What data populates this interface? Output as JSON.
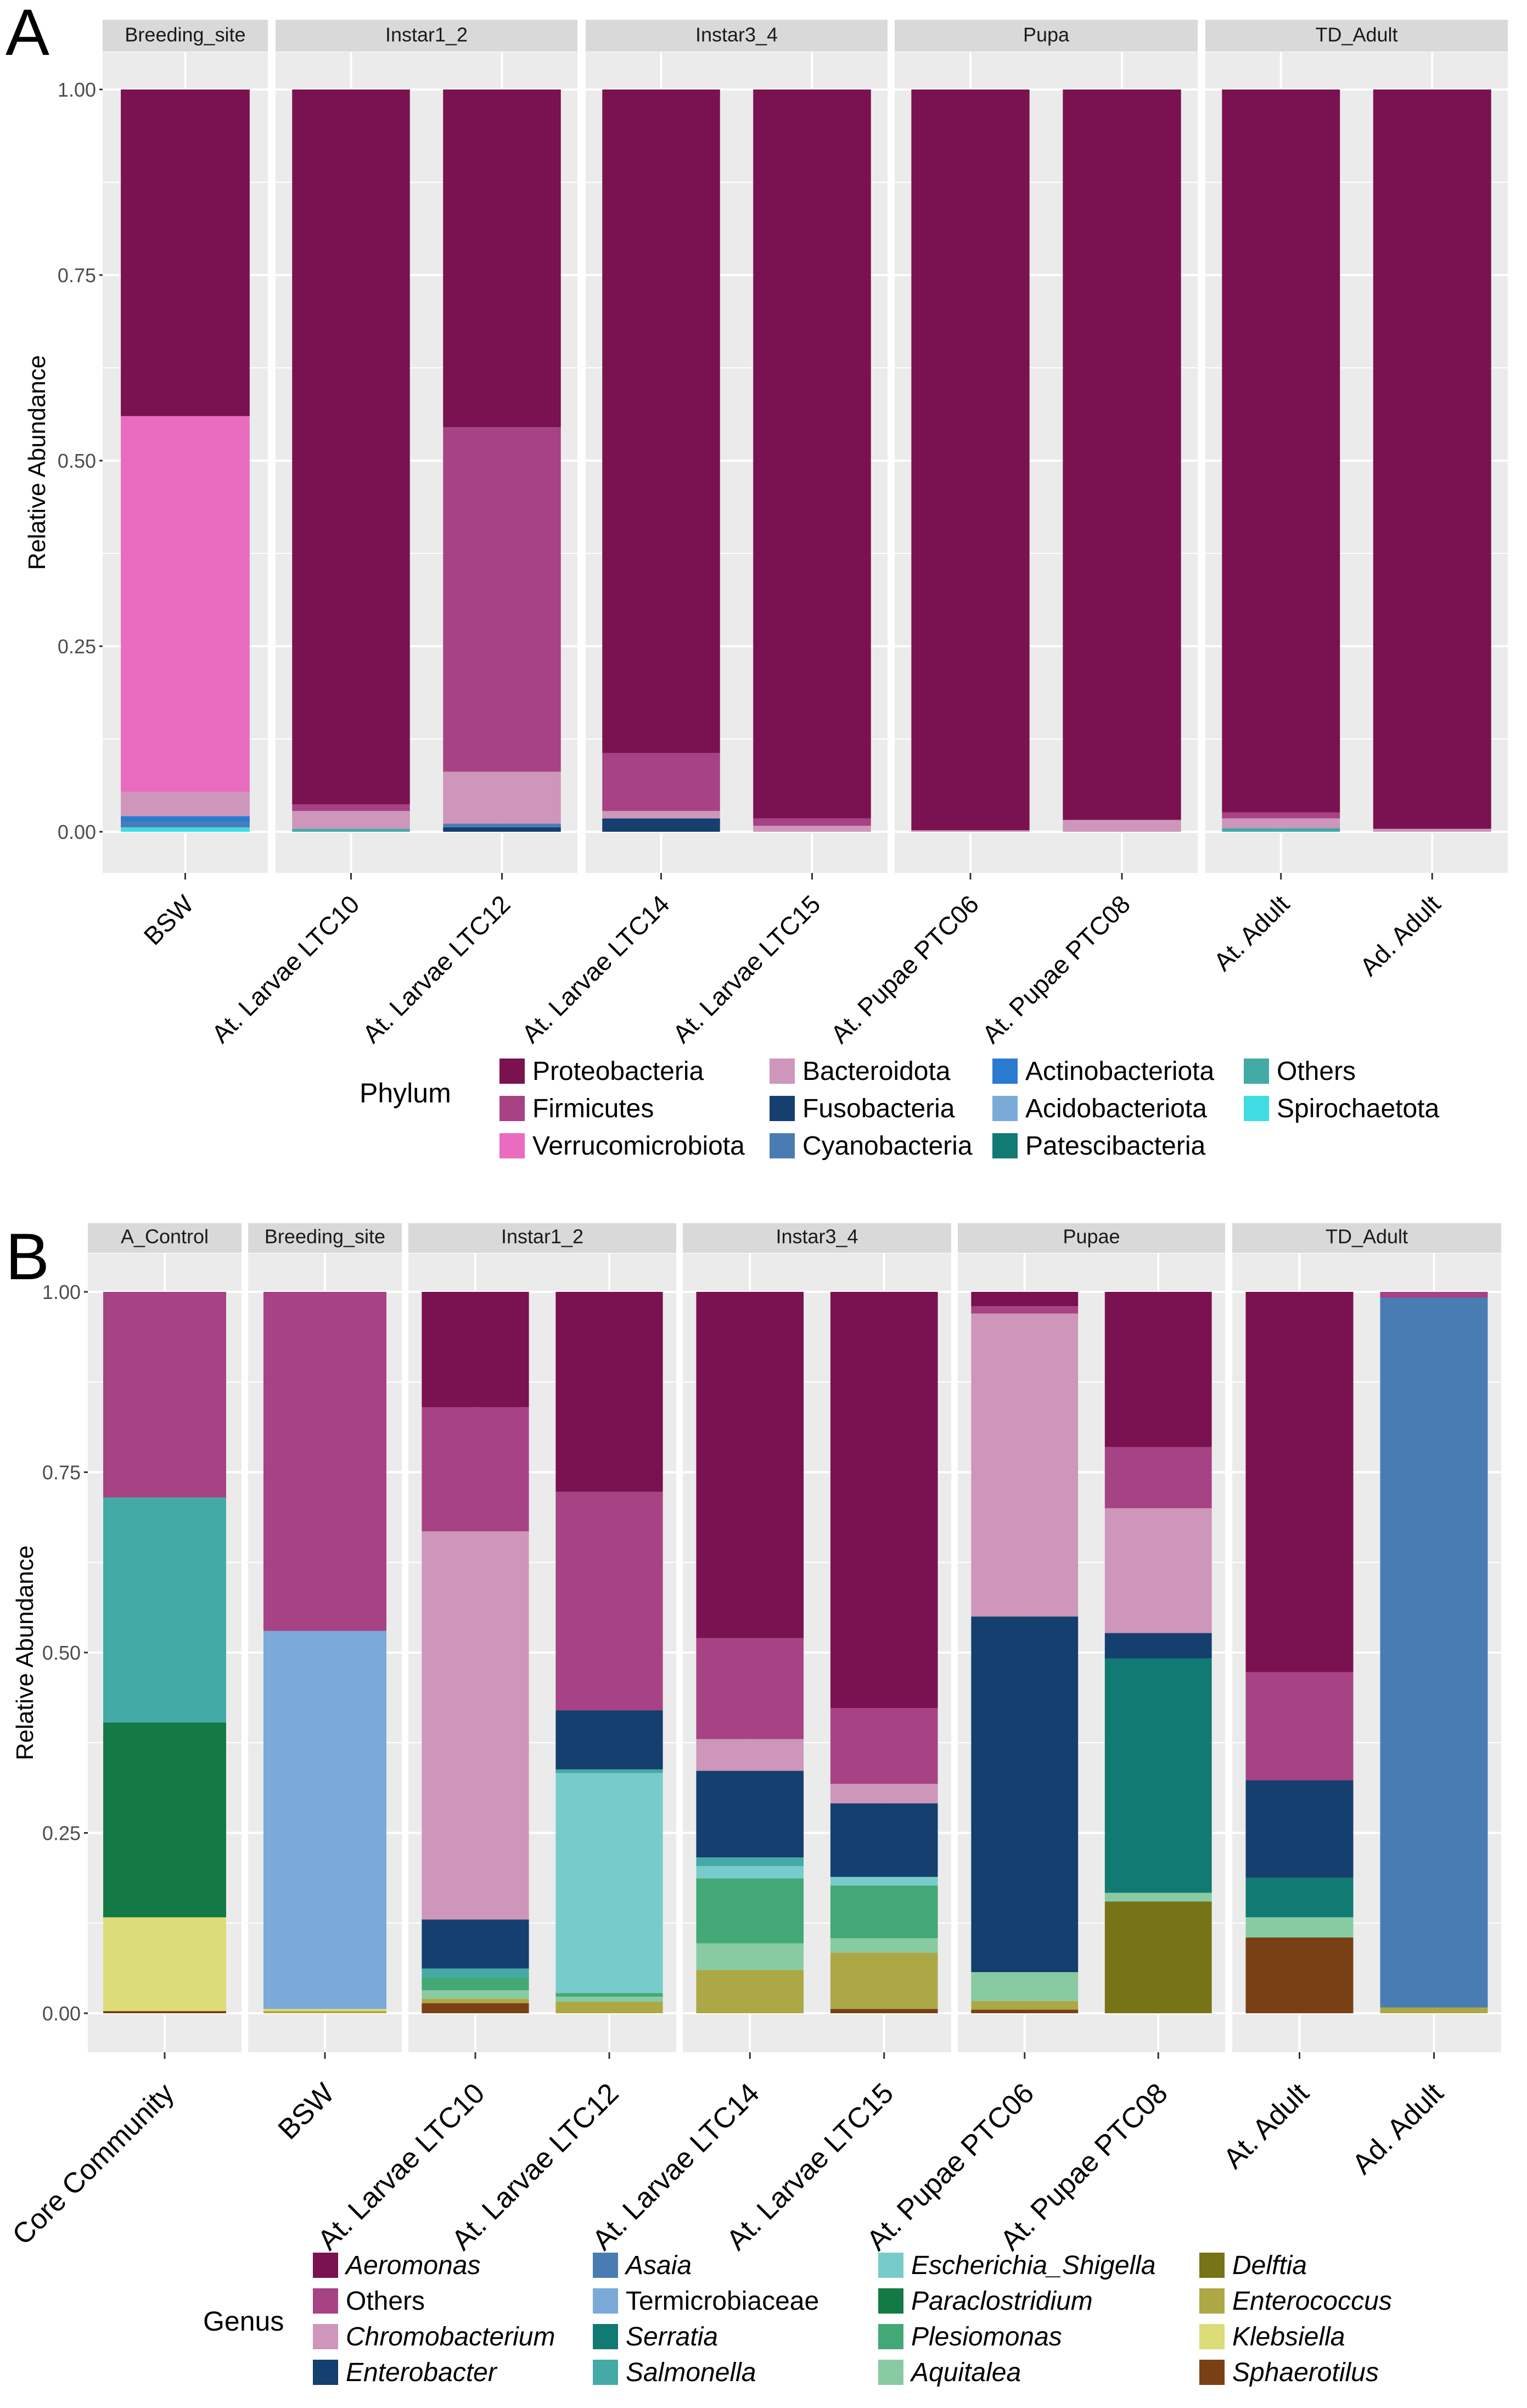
{
  "figure": {
    "panel_a_label": "A",
    "panel_b_label": "B"
  },
  "colors": {
    "panelbg": "#ebebeb",
    "stripbg": "#d9d9d9",
    "grid": "#ffffff",
    "text": "#4d4d4d",
    "dark": "#000000"
  },
  "chart_data": [
    {
      "panel": "A",
      "type": "bar",
      "stacked": true,
      "ylabel": "Relative Abundance",
      "xlabel": "",
      "ylim": [
        0,
        1
      ],
      "yticks": [
        "0.00",
        "0.25",
        "0.50",
        "0.75",
        "1.00"
      ],
      "facets": [
        {
          "label": "Breeding_site",
          "samples": [
            "BSW"
          ]
        },
        {
          "label": "Instar1_2",
          "samples": [
            "At. Larvae LTC10",
            "At. Larvae LTC12"
          ]
        },
        {
          "label": "Instar3_4",
          "samples": [
            "At. Larvae LTC14",
            "At. Larvae LTC15"
          ]
        },
        {
          "label": "Pupa",
          "samples": [
            "At. Pupae PTC06",
            "At. Pupae PTC08"
          ]
        },
        {
          "label": "TD_Adult",
          "samples": [
            "At. Adult",
            "Ad. Adult"
          ]
        }
      ],
      "legend": {
        "title": "Phylum",
        "position": "bottom",
        "columns": [
          [
            "Proteobacteria",
            "Firmicutes",
            "Verrucomicrobiota"
          ],
          [
            "Bacteroidota",
            "Fusobacteria",
            "Cyanobacteria"
          ],
          [
            "Actinobacteriota",
            "Acidobacteriota",
            "Patescibacteria"
          ],
          [
            "Others",
            "Spirochaetota"
          ]
        ]
      },
      "series": [
        {
          "name": "Proteobacteria",
          "color": "#7a1150"
        },
        {
          "name": "Firmicutes",
          "color": "#a74285"
        },
        {
          "name": "Verrucomicrobiota",
          "color": "#e96cc1"
        },
        {
          "name": "Bacteroidota",
          "color": "#cd96ba"
        },
        {
          "name": "Fusobacteria",
          "color": "#143f6e"
        },
        {
          "name": "Cyanobacteria",
          "color": "#4a7cb4"
        },
        {
          "name": "Actinobacteriota",
          "color": "#2a7ad0"
        },
        {
          "name": "Acidobacteriota",
          "color": "#7baad9"
        },
        {
          "name": "Patescibacteria",
          "color": "#117a72"
        },
        {
          "name": "Others",
          "color": "#44aaa6"
        },
        {
          "name": "Spirochaetota",
          "color": "#3fdde3"
        }
      ],
      "stacks": {
        "BSW": [
          {
            "name": "Spirochaetota",
            "value": 0.006
          },
          {
            "name": "Cyanobacteria",
            "value": 0.007
          },
          {
            "name": "Actinobacteriota",
            "value": 0.008
          },
          {
            "name": "Bacteroidota",
            "value": 0.033
          },
          {
            "name": "Verrucomicrobiota",
            "value": 0.506
          },
          {
            "name": "Proteobacteria",
            "value": 0.44
          }
        ],
        "At. Larvae LTC10": [
          {
            "name": "Others",
            "value": 0.004
          },
          {
            "name": "Bacteroidota",
            "value": 0.024
          },
          {
            "name": "Firmicutes",
            "value": 0.009
          },
          {
            "name": "Proteobacteria",
            "value": 0.963
          }
        ],
        "At. Larvae LTC12": [
          {
            "name": "Fusobacteria",
            "value": 0.006
          },
          {
            "name": "Cyanobacteria",
            "value": 0.005
          },
          {
            "name": "Bacteroidota",
            "value": 0.07
          },
          {
            "name": "Firmicutes",
            "value": 0.464
          },
          {
            "name": "Proteobacteria",
            "value": 0.455
          }
        ],
        "At. Larvae LTC14": [
          {
            "name": "Fusobacteria",
            "value": 0.018
          },
          {
            "name": "Bacteroidota",
            "value": 0.01
          },
          {
            "name": "Firmicutes",
            "value": 0.078
          },
          {
            "name": "Proteobacteria",
            "value": 0.894
          }
        ],
        "At. Larvae LTC15": [
          {
            "name": "Bacteroidota",
            "value": 0.008
          },
          {
            "name": "Firmicutes",
            "value": 0.01
          },
          {
            "name": "Proteobacteria",
            "value": 0.982
          }
        ],
        "At. Pupae PTC06": [
          {
            "name": "Bacteroidota",
            "value": 0.002
          },
          {
            "name": "Proteobacteria",
            "value": 0.998
          }
        ],
        "At. Pupae PTC08": [
          {
            "name": "Bacteroidota",
            "value": 0.016
          },
          {
            "name": "Proteobacteria",
            "value": 0.984
          }
        ],
        "At. Adult": [
          {
            "name": "Others",
            "value": 0.005
          },
          {
            "name": "Bacteroidota",
            "value": 0.013
          },
          {
            "name": "Firmicutes",
            "value": 0.008
          },
          {
            "name": "Proteobacteria",
            "value": 0.974
          }
        ],
        "Ad. Adult": [
          {
            "name": "Bacteroidota",
            "value": 0.004
          },
          {
            "name": "Proteobacteria",
            "value": 0.996
          }
        ]
      }
    },
    {
      "panel": "B",
      "type": "bar",
      "stacked": true,
      "ylabel": "Relative Abundance",
      "xlabel": "",
      "ylim": [
        0,
        1
      ],
      "yticks": [
        "0.00",
        "0.25",
        "0.50",
        "0.75",
        "1.00"
      ],
      "facets": [
        {
          "label": "A_Control",
          "samples": [
            "Core Community"
          ]
        },
        {
          "label": "Breeding_site",
          "samples": [
            "BSW"
          ]
        },
        {
          "label": "Instar1_2",
          "samples": [
            "At. Larvae LTC10",
            "At. Larvae LTC12"
          ]
        },
        {
          "label": "Instar3_4",
          "samples": [
            "At. Larvae LTC14",
            "At. Larvae LTC15"
          ]
        },
        {
          "label": "Pupae",
          "samples": [
            "At. Pupae PTC06",
            "At. Pupae PTC08"
          ]
        },
        {
          "label": "TD_Adult",
          "samples": [
            "At. Adult",
            "Ad. Adult"
          ]
        }
      ],
      "legend": {
        "title": "Genus",
        "position": "bottom",
        "columns": [
          [
            "Aeromonas",
            "Others",
            "Chromobacterium",
            "Enterobacter"
          ],
          [
            "Asaia",
            "Termicrobiaceae",
            "Serratia",
            "Salmonella"
          ],
          [
            "Escherichia_Shigella",
            "Paraclostridium",
            "Plesiomonas",
            "Aquitalea"
          ],
          [
            "Delftia",
            "Enterococcus",
            "Klebsiella",
            "Sphaerotilus"
          ]
        ],
        "non_italic": [
          "Others",
          "Termicrobiaceae"
        ]
      },
      "series": [
        {
          "name": "Aeromonas",
          "color": "#7a1150"
        },
        {
          "name": "Others",
          "color": "#a74285"
        },
        {
          "name": "Chromobacterium",
          "color": "#cd96ba"
        },
        {
          "name": "Enterobacter",
          "color": "#143f6e"
        },
        {
          "name": "Asaia",
          "color": "#4a7cb4"
        },
        {
          "name": "Termicrobiaceae",
          "color": "#7baad9"
        },
        {
          "name": "Serratia",
          "color": "#117a72"
        },
        {
          "name": "Salmonella",
          "color": "#44aaa6"
        },
        {
          "name": "Escherichia_Shigella",
          "color": "#77cccb"
        },
        {
          "name": "Paraclostridium",
          "color": "#137a45"
        },
        {
          "name": "Plesiomonas",
          "color": "#42a876"
        },
        {
          "name": "Aquitalea",
          "color": "#88cba2"
        },
        {
          "name": "Delftia",
          "color": "#767417"
        },
        {
          "name": "Enterococcus",
          "color": "#aca846"
        },
        {
          "name": "Klebsiella",
          "color": "#dcdc78"
        },
        {
          "name": "Sphaerotilus",
          "color": "#7a4015"
        }
      ],
      "stacks": {
        "Core Community": [
          {
            "name": "Sphaerotilus",
            "value": 0.003
          },
          {
            "name": "Klebsiella",
            "value": 0.13
          },
          {
            "name": "Paraclostridium",
            "value": 0.27
          },
          {
            "name": "Salmonella",
            "value": 0.312
          },
          {
            "name": "Others",
            "value": 0.285
          }
        ],
        "BSW": [
          {
            "name": "Enterococcus",
            "value": 0.003
          },
          {
            "name": "Klebsiella",
            "value": 0.003
          },
          {
            "name": "Termicrobiaceae",
            "value": 0.524
          },
          {
            "name": "Others",
            "value": 0.47
          }
        ],
        "At. Larvae LTC10": [
          {
            "name": "Sphaerotilus",
            "value": 0.014
          },
          {
            "name": "Enterococcus",
            "value": 0.006
          },
          {
            "name": "Aquitalea",
            "value": 0.012
          },
          {
            "name": "Plesiomonas",
            "value": 0.018
          },
          {
            "name": "Salmonella",
            "value": 0.012
          },
          {
            "name": "Enterobacter",
            "value": 0.068
          },
          {
            "name": "Chromobacterium",
            "value": 0.538
          },
          {
            "name": "Others",
            "value": 0.172
          },
          {
            "name": "Aeromonas",
            "value": 0.16
          }
        ],
        "At. Larvae LTC12": [
          {
            "name": "Enterococcus",
            "value": 0.016
          },
          {
            "name": "Aquitalea",
            "value": 0.007
          },
          {
            "name": "Plesiomonas",
            "value": 0.005
          },
          {
            "name": "Escherichia_Shigella",
            "value": 0.305
          },
          {
            "name": "Salmonella",
            "value": 0.005
          },
          {
            "name": "Enterobacter",
            "value": 0.082
          },
          {
            "name": "Others",
            "value": 0.303
          },
          {
            "name": "Aeromonas",
            "value": 0.277
          }
        ],
        "At. Larvae LTC14": [
          {
            "name": "Enterococcus",
            "value": 0.06
          },
          {
            "name": "Aquitalea",
            "value": 0.037
          },
          {
            "name": "Plesiomonas",
            "value": 0.09
          },
          {
            "name": "Escherichia_Shigella",
            "value": 0.017
          },
          {
            "name": "Salmonella",
            "value": 0.012
          },
          {
            "name": "Enterobacter",
            "value": 0.12
          },
          {
            "name": "Chromobacterium",
            "value": 0.044
          },
          {
            "name": "Others",
            "value": 0.14
          },
          {
            "name": "Aeromonas",
            "value": 0.48
          }
        ],
        "At. Larvae LTC15": [
          {
            "name": "Sphaerotilus",
            "value": 0.006
          },
          {
            "name": "Enterococcus",
            "value": 0.078
          },
          {
            "name": "Aquitalea",
            "value": 0.02
          },
          {
            "name": "Plesiomonas",
            "value": 0.073
          },
          {
            "name": "Escherichia_Shigella",
            "value": 0.012
          },
          {
            "name": "Enterobacter",
            "value": 0.102
          },
          {
            "name": "Chromobacterium",
            "value": 0.027
          },
          {
            "name": "Others",
            "value": 0.105
          },
          {
            "name": "Aeromonas",
            "value": 0.577
          }
        ],
        "At. Pupae PTC06": [
          {
            "name": "Sphaerotilus",
            "value": 0.005
          },
          {
            "name": "Enterococcus",
            "value": 0.012
          },
          {
            "name": "Aquitalea",
            "value": 0.04
          },
          {
            "name": "Enterobacter",
            "value": 0.493
          },
          {
            "name": "Chromobacterium",
            "value": 0.42
          },
          {
            "name": "Others",
            "value": 0.01
          },
          {
            "name": "Aeromonas",
            "value": 0.02
          }
        ],
        "At. Pupae PTC08": [
          {
            "name": "Delftia",
            "value": 0.155
          },
          {
            "name": "Aquitalea",
            "value": 0.012
          },
          {
            "name": "Serratia",
            "value": 0.325
          },
          {
            "name": "Enterobacter",
            "value": 0.035
          },
          {
            "name": "Chromobacterium",
            "value": 0.173
          },
          {
            "name": "Others",
            "value": 0.085
          },
          {
            "name": "Aeromonas",
            "value": 0.215
          }
        ],
        "At. Adult": [
          {
            "name": "Sphaerotilus",
            "value": 0.105
          },
          {
            "name": "Aquitalea",
            "value": 0.028
          },
          {
            "name": "Serratia",
            "value": 0.055
          },
          {
            "name": "Enterobacter",
            "value": 0.135
          },
          {
            "name": "Others",
            "value": 0.15
          },
          {
            "name": "Aeromonas",
            "value": 0.527
          }
        ],
        "Ad. Adult": [
          {
            "name": "Enterococcus",
            "value": 0.008
          },
          {
            "name": "Asaia",
            "value": 0.984
          },
          {
            "name": "Others",
            "value": 0.008
          }
        ]
      }
    }
  ]
}
